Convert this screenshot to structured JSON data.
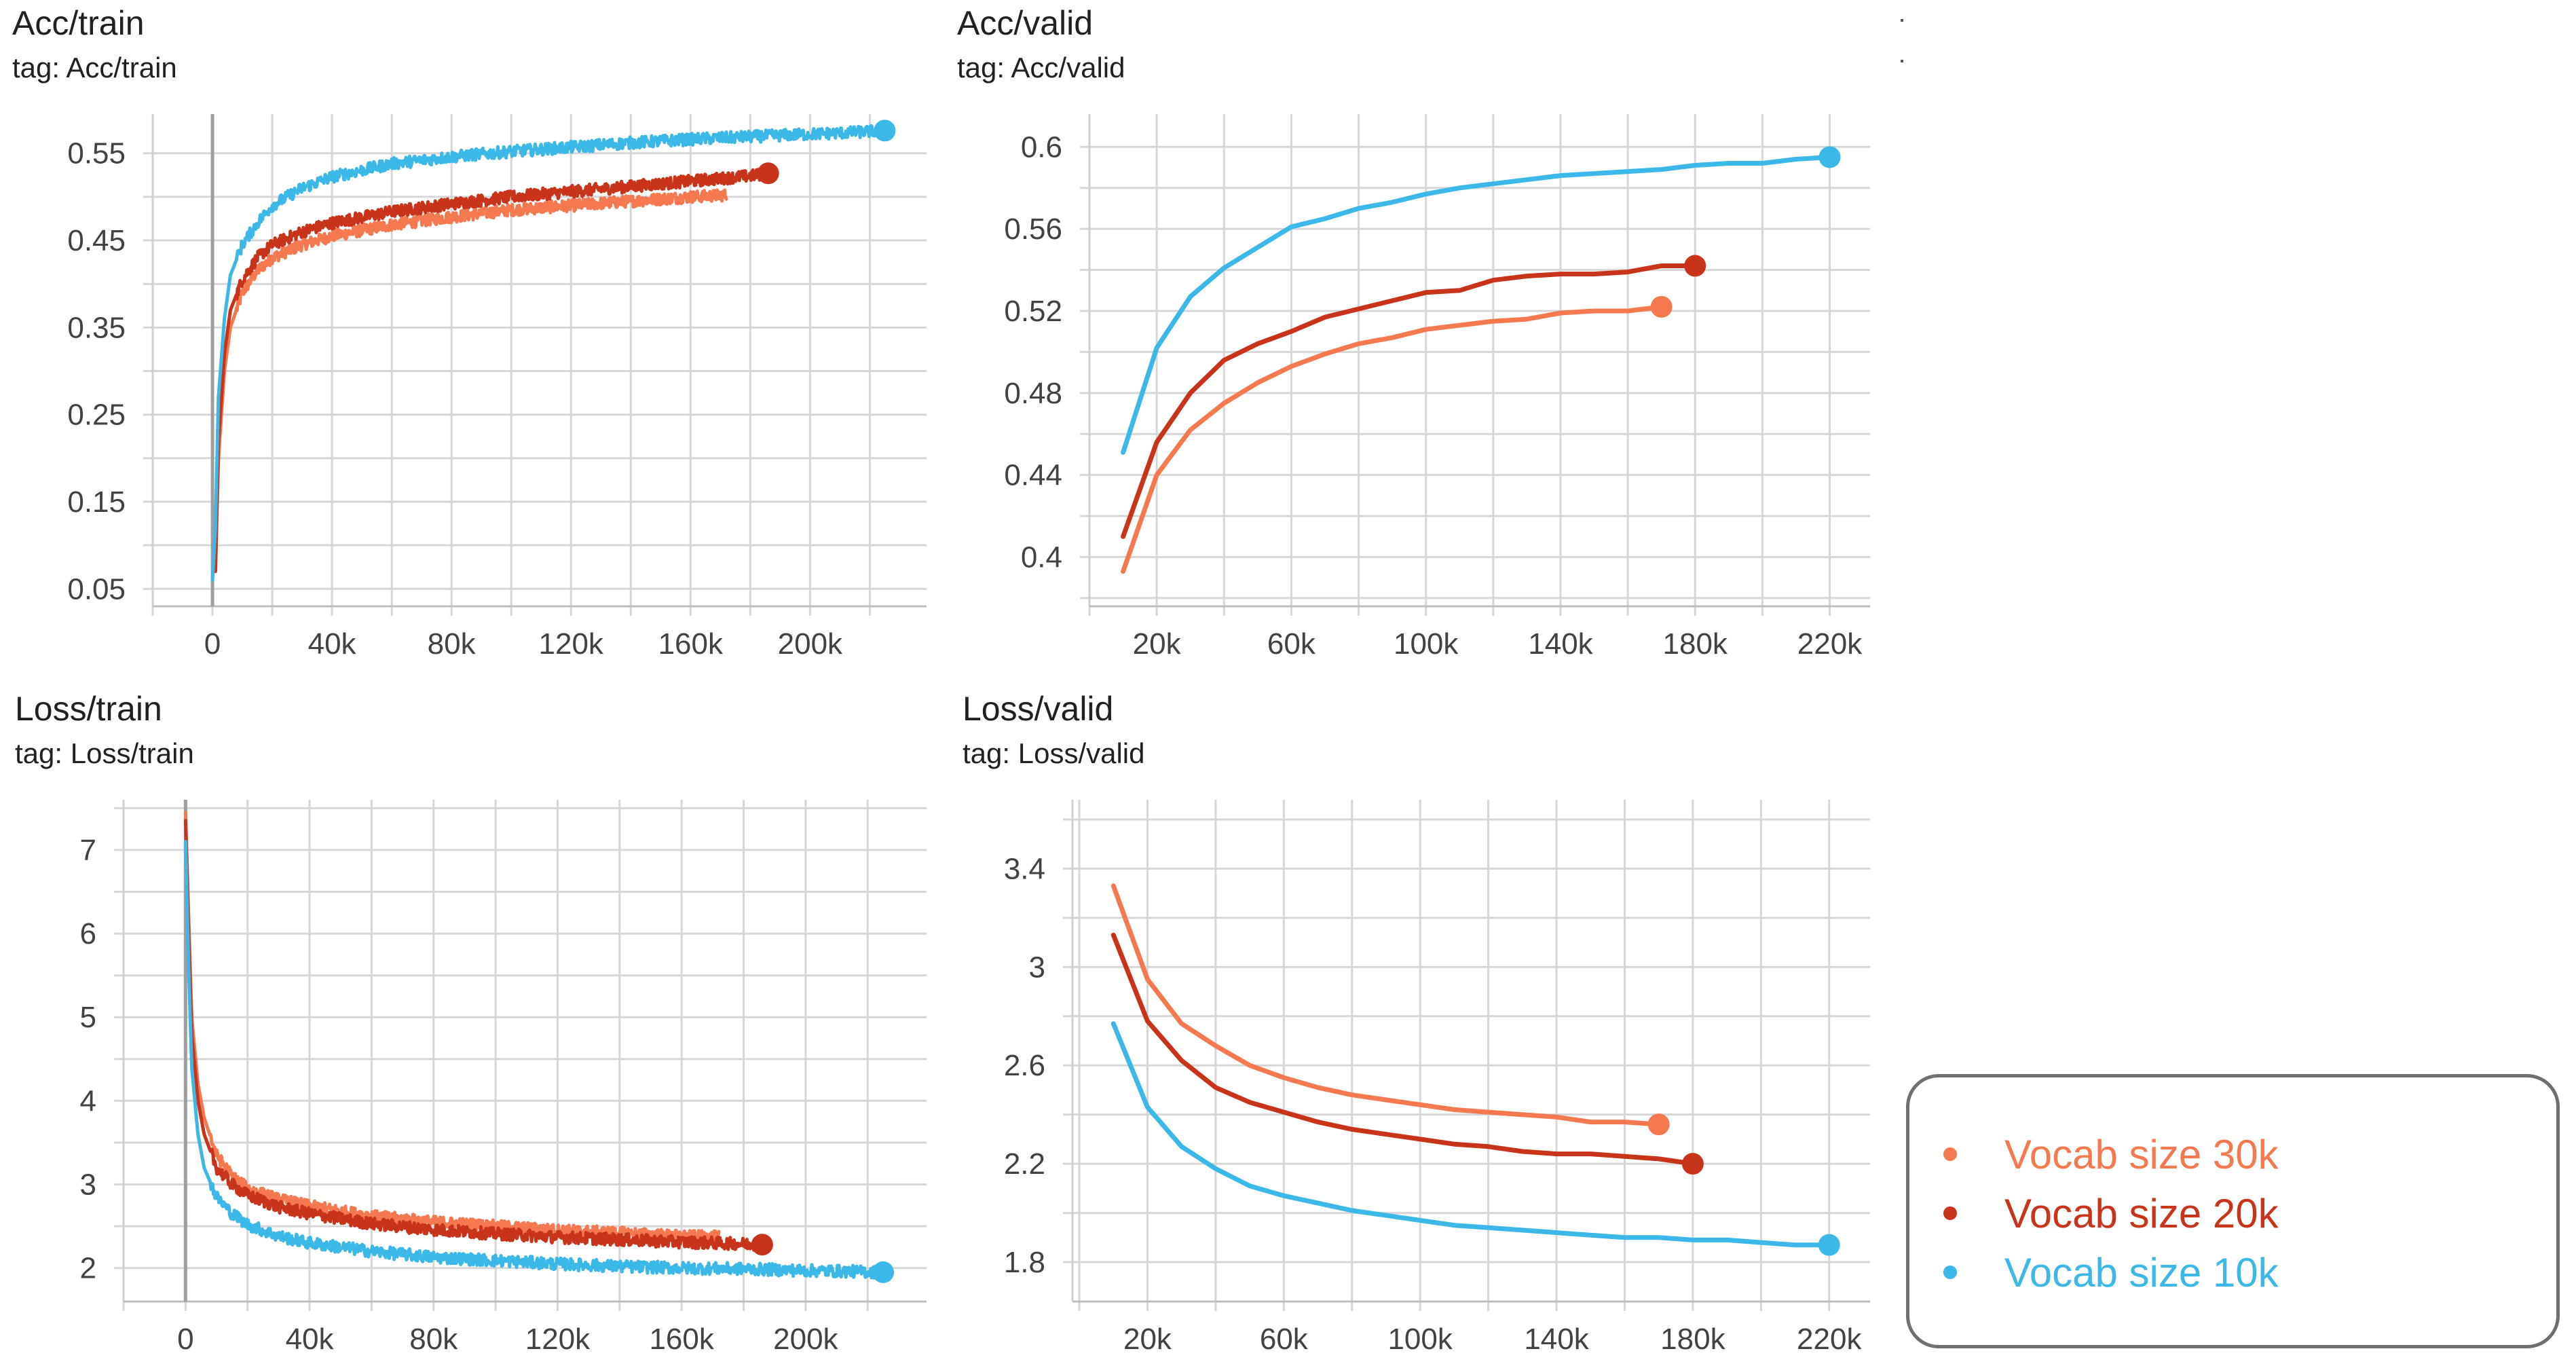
{
  "chart_data": [
    {
      "id": "acc_train",
      "type": "line",
      "title": "Acc/train",
      "tag": "tag: Acc/train",
      "xlabel": "",
      "ylabel": "",
      "xlim": [
        -20000,
        239000
      ],
      "ylim": [
        0.03,
        0.595
      ],
      "xticks": [
        0,
        40000,
        80000,
        120000,
        160000,
        200000
      ],
      "xtick_labels": [
        "0",
        "40k",
        "80k",
        "120k",
        "160k",
        "200k"
      ],
      "yticks": [
        0.05,
        0.15,
        0.25,
        0.35,
        0.45,
        0.55
      ],
      "ytick_labels": [
        "0.05",
        "0.15",
        "0.25",
        "0.35",
        "0.45",
        "0.55"
      ],
      "zero_line": true,
      "grid": true,
      "noisy": true,
      "series": [
        {
          "name": "Vocab size 30k",
          "color": "#f4794f",
          "end_marker": false,
          "x": [
            1000,
            2000,
            4000,
            6000,
            10000,
            15000,
            20000,
            30000,
            40000,
            60000,
            80000,
            100000,
            120000,
            140000,
            160000,
            172000
          ],
          "y": [
            0.07,
            0.2,
            0.3,
            0.35,
            0.39,
            0.415,
            0.43,
            0.445,
            0.455,
            0.468,
            0.477,
            0.485,
            0.49,
            0.495,
            0.5,
            0.502
          ]
        },
        {
          "name": "Vocab size 20k",
          "color": "#c8341a",
          "end_marker": true,
          "x": [
            1000,
            2000,
            4000,
            6000,
            10000,
            15000,
            20000,
            30000,
            40000,
            60000,
            80000,
            100000,
            120000,
            140000,
            160000,
            180000,
            186000
          ],
          "y": [
            0.07,
            0.22,
            0.32,
            0.37,
            0.405,
            0.43,
            0.445,
            0.46,
            0.47,
            0.483,
            0.492,
            0.5,
            0.506,
            0.512,
            0.518,
            0.524,
            0.527
          ]
        },
        {
          "name": "Vocab size 10k",
          "color": "#3bb7e8",
          "end_marker": true,
          "x": [
            0,
            1000,
            2000,
            4000,
            6000,
            10000,
            15000,
            20000,
            30000,
            40000,
            60000,
            80000,
            100000,
            120000,
            140000,
            160000,
            180000,
            200000,
            215000,
            225000
          ],
          "y": [
            0.06,
            0.12,
            0.27,
            0.36,
            0.41,
            0.445,
            0.47,
            0.49,
            0.51,
            0.523,
            0.538,
            0.546,
            0.552,
            0.557,
            0.562,
            0.566,
            0.569,
            0.572,
            0.574,
            0.576
          ]
        }
      ]
    },
    {
      "id": "acc_valid",
      "type": "line",
      "title": "Acc/valid",
      "tag": "tag: Acc/valid",
      "xlabel": "",
      "ylabel": "",
      "xlim": [
        0,
        232000
      ],
      "ylim": [
        0.376,
        0.616
      ],
      "xticks": [
        20000,
        60000,
        100000,
        140000,
        180000,
        220000
      ],
      "xtick_labels": [
        "20k",
        "60k",
        "100k",
        "140k",
        "180k",
        "220k"
      ],
      "yticks": [
        0.4,
        0.44,
        0.48,
        0.52,
        0.56,
        0.6
      ],
      "ytick_labels": [
        "0.4",
        "0.44",
        "0.48",
        "0.52",
        "0.56",
        "0.6"
      ],
      "zero_line": false,
      "grid": true,
      "noisy": false,
      "series": [
        {
          "name": "Vocab size 30k",
          "color": "#f4794f",
          "end_marker": true,
          "x": [
            10000,
            20000,
            30000,
            40000,
            50000,
            60000,
            70000,
            80000,
            90000,
            100000,
            110000,
            120000,
            130000,
            140000,
            150000,
            160000,
            170000
          ],
          "y": [
            0.393,
            0.44,
            0.462,
            0.475,
            0.485,
            0.493,
            0.499,
            0.504,
            0.507,
            0.511,
            0.513,
            0.515,
            0.516,
            0.519,
            0.52,
            0.52,
            0.522
          ]
        },
        {
          "name": "Vocab size 20k",
          "color": "#c8341a",
          "end_marker": true,
          "x": [
            10000,
            20000,
            30000,
            40000,
            50000,
            60000,
            70000,
            80000,
            90000,
            100000,
            110000,
            120000,
            130000,
            140000,
            150000,
            160000,
            170000,
            180000
          ],
          "y": [
            0.41,
            0.456,
            0.48,
            0.496,
            0.504,
            0.51,
            0.517,
            0.521,
            0.525,
            0.529,
            0.53,
            0.535,
            0.537,
            0.538,
            0.538,
            0.539,
            0.542,
            0.542
          ]
        },
        {
          "name": "Vocab size 10k",
          "color": "#3bb7e8",
          "end_marker": true,
          "x": [
            10000,
            20000,
            30000,
            40000,
            50000,
            60000,
            70000,
            80000,
            90000,
            100000,
            110000,
            120000,
            130000,
            140000,
            150000,
            160000,
            170000,
            180000,
            190000,
            200000,
            210000,
            220000
          ],
          "y": [
            0.451,
            0.502,
            0.527,
            0.541,
            0.551,
            0.561,
            0.565,
            0.57,
            0.573,
            0.577,
            0.58,
            0.582,
            0.584,
            0.586,
            0.587,
            0.588,
            0.589,
            0.591,
            0.592,
            0.592,
            0.594,
            0.595
          ]
        }
      ]
    },
    {
      "id": "loss_train",
      "type": "line",
      "title": "Loss/train",
      "tag": "tag: Loss/train",
      "xlabel": "",
      "ylabel": "",
      "xlim": [
        -20000,
        239000
      ],
      "ylim": [
        1.6,
        7.6
      ],
      "xticks": [
        0,
        40000,
        80000,
        120000,
        160000,
        200000
      ],
      "xtick_labels": [
        "0",
        "40k",
        "80k",
        "120k",
        "160k",
        "200k"
      ],
      "yticks": [
        2,
        3,
        4,
        5,
        6,
        7
      ],
      "ytick_labels": [
        "2",
        "3",
        "4",
        "5",
        "6",
        "7"
      ],
      "zero_line": true,
      "grid": true,
      "noisy": true,
      "series": [
        {
          "name": "Vocab size 30k",
          "color": "#f4794f",
          "end_marker": false,
          "x": [
            0,
            1000,
            2000,
            4000,
            6000,
            10000,
            15000,
            20000,
            30000,
            40000,
            60000,
            80000,
            100000,
            120000,
            140000,
            160000,
            172000
          ],
          "y": [
            7.45,
            6.2,
            5.0,
            4.2,
            3.8,
            3.35,
            3.1,
            2.95,
            2.82,
            2.74,
            2.62,
            2.55,
            2.5,
            2.45,
            2.42,
            2.38,
            2.37
          ]
        },
        {
          "name": "Vocab size 20k",
          "color": "#c8341a",
          "end_marker": true,
          "x": [
            0,
            1000,
            2000,
            4000,
            6000,
            10000,
            15000,
            20000,
            30000,
            40000,
            60000,
            80000,
            100000,
            120000,
            140000,
            160000,
            180000,
            186000
          ],
          "y": [
            7.35,
            6.0,
            4.8,
            4.0,
            3.6,
            3.2,
            3.0,
            2.87,
            2.73,
            2.65,
            2.53,
            2.46,
            2.41,
            2.37,
            2.34,
            2.31,
            2.29,
            2.28
          ]
        },
        {
          "name": "Vocab size 10k",
          "color": "#3bb7e8",
          "end_marker": true,
          "x": [
            0,
            1000,
            2000,
            4000,
            6000,
            10000,
            15000,
            20000,
            30000,
            40000,
            60000,
            80000,
            100000,
            120000,
            140000,
            160000,
            180000,
            200000,
            215000,
            225000
          ],
          "y": [
            7.1,
            5.6,
            4.4,
            3.6,
            3.2,
            2.85,
            2.65,
            2.52,
            2.38,
            2.3,
            2.2,
            2.13,
            2.09,
            2.05,
            2.02,
            2.0,
            1.99,
            1.97,
            1.96,
            1.95
          ]
        }
      ]
    },
    {
      "id": "loss_valid",
      "type": "line",
      "title": "Loss/valid",
      "tag": "tag: Loss/valid",
      "xlabel": "",
      "ylabel": "",
      "xlim": [
        -2000,
        232000
      ],
      "ylim": [
        1.64,
        3.68
      ],
      "xticks": [
        20000,
        60000,
        100000,
        140000,
        180000,
        220000
      ],
      "xtick_labels": [
        "20k",
        "60k",
        "100k",
        "140k",
        "180k",
        "220k"
      ],
      "yticks": [
        1.8,
        2.2,
        2.6,
        3,
        3.4
      ],
      "ytick_labels": [
        "1.8",
        "2.2",
        "2.6",
        "3",
        "3.4"
      ],
      "zero_line": false,
      "grid": true,
      "noisy": false,
      "series": [
        {
          "name": "Vocab size 30k",
          "color": "#f4794f",
          "end_marker": true,
          "x": [
            10000,
            20000,
            30000,
            40000,
            50000,
            60000,
            70000,
            80000,
            90000,
            100000,
            110000,
            120000,
            130000,
            140000,
            150000,
            160000,
            170000
          ],
          "y": [
            3.33,
            2.95,
            2.77,
            2.68,
            2.6,
            2.55,
            2.51,
            2.48,
            2.46,
            2.44,
            2.42,
            2.41,
            2.4,
            2.39,
            2.37,
            2.37,
            2.36
          ]
        },
        {
          "name": "Vocab size 20k",
          "color": "#c8341a",
          "end_marker": true,
          "x": [
            10000,
            20000,
            30000,
            40000,
            50000,
            60000,
            70000,
            80000,
            90000,
            100000,
            110000,
            120000,
            130000,
            140000,
            150000,
            160000,
            170000,
            180000
          ],
          "y": [
            3.13,
            2.78,
            2.62,
            2.51,
            2.45,
            2.41,
            2.37,
            2.34,
            2.32,
            2.3,
            2.28,
            2.27,
            2.25,
            2.24,
            2.24,
            2.23,
            2.22,
            2.2
          ]
        },
        {
          "name": "Vocab size 10k",
          "color": "#3bb7e8",
          "end_marker": true,
          "x": [
            10000,
            20000,
            30000,
            40000,
            50000,
            60000,
            70000,
            80000,
            90000,
            100000,
            110000,
            120000,
            130000,
            140000,
            150000,
            160000,
            170000,
            180000,
            190000,
            200000,
            210000,
            220000
          ],
          "y": [
            2.77,
            2.43,
            2.27,
            2.18,
            2.11,
            2.07,
            2.04,
            2.01,
            1.99,
            1.97,
            1.95,
            1.94,
            1.93,
            1.92,
            1.91,
            1.9,
            1.9,
            1.89,
            1.89,
            1.88,
            1.87,
            1.87
          ]
        }
      ]
    }
  ],
  "legend": {
    "items": [
      {
        "label": "Vocab size 30k",
        "color": "#f4794f"
      },
      {
        "label": "Vocab size 20k",
        "color": "#c8341a"
      },
      {
        "label": "Vocab size 10k",
        "color": "#3bb7e8"
      }
    ]
  }
}
